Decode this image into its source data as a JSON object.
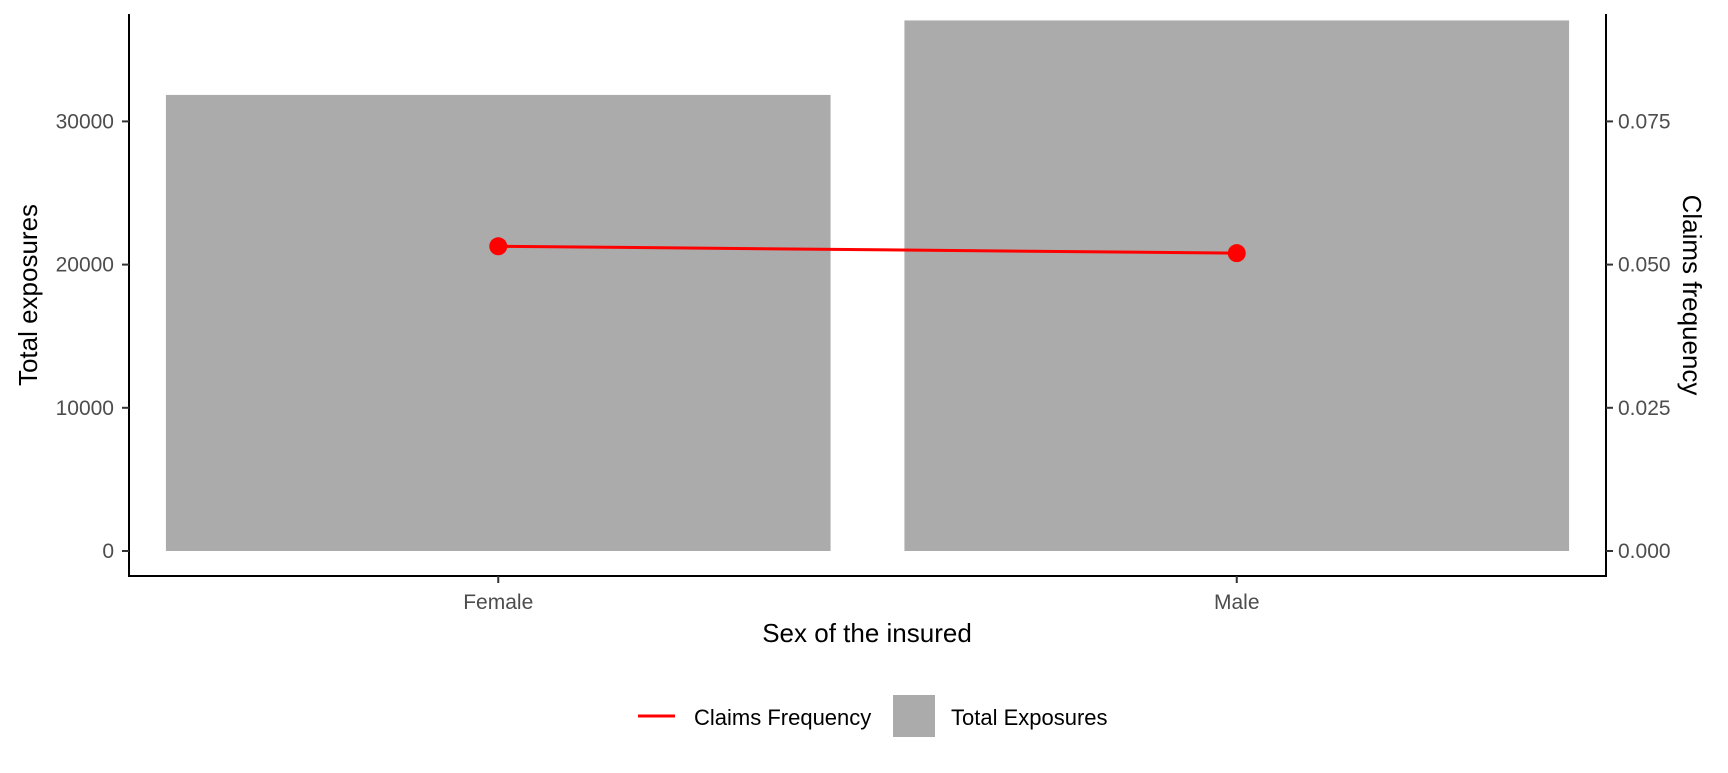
{
  "chart_data": {
    "type": "bar",
    "categories": [
      "Female",
      "Male"
    ],
    "xlabel": "Sex of the insured",
    "ylabel": "Total exposures",
    "y2label": "Claims frequency",
    "ylim": [
      0,
      37500
    ],
    "y2lim": [
      0,
      0.09375
    ],
    "yticks": [
      0,
      10000,
      20000,
      30000
    ],
    "ytick_labels": [
      "0",
      "10000",
      "20000",
      "30000"
    ],
    "y2ticks": [
      0,
      0.025,
      0.05,
      0.075
    ],
    "y2tick_labels": [
      "0.000",
      "0.025",
      "0.050",
      "0.075"
    ],
    "grid": false,
    "legend_position": "bottom",
    "series": [
      {
        "name": "Total Exposures",
        "kind": "bar",
        "axis": "left",
        "color": "#ABABAB",
        "values": [
          31850,
          37050
        ]
      },
      {
        "name": "Claims Frequency",
        "kind": "line",
        "axis": "right",
        "color": "#FF0000",
        "values": [
          0.0532,
          0.052
        ]
      }
    ],
    "legend": [
      {
        "label": "Claims Frequency",
        "symbol": "line",
        "color": "#FF0000"
      },
      {
        "label": "Total Exposures",
        "symbol": "square",
        "color": "#ABABAB"
      }
    ]
  }
}
